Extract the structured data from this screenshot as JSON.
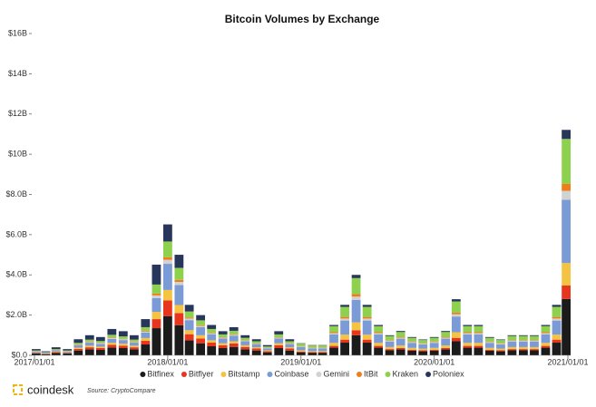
{
  "chart_data": {
    "type": "stacked-bar",
    "title": "Bitcoin Volumes by Exchange",
    "x": [
      "2017/01/01",
      "2017/02/01",
      "2017/03/01",
      "2017/04/01",
      "2017/05/01",
      "2017/06/01",
      "2017/07/01",
      "2017/08/01",
      "2017/09/01",
      "2017/10/01",
      "2017/11/01",
      "2017/12/01",
      "2018/01/01",
      "2018/02/01",
      "2018/03/01",
      "2018/04/01",
      "2018/05/01",
      "2018/06/01",
      "2018/07/01",
      "2018/08/01",
      "2018/09/01",
      "2018/10/01",
      "2018/11/01",
      "2018/12/01",
      "2019/01/01",
      "2019/02/01",
      "2019/03/01",
      "2019/04/01",
      "2019/05/01",
      "2019/06/01",
      "2019/07/01",
      "2019/08/01",
      "2019/09/01",
      "2019/10/01",
      "2019/11/01",
      "2019/12/01",
      "2020/01/01",
      "2020/02/01",
      "2020/03/01",
      "2020/04/01",
      "2020/05/01",
      "2020/06/01",
      "2020/07/01",
      "2020/08/01",
      "2020/09/01",
      "2020/10/01",
      "2020/11/01",
      "2020/12/01",
      "2021/01/01"
    ],
    "xlim": [
      "2017/01/01",
      "2021/01/01"
    ],
    "xticks": [
      "2017/01/01",
      "2018/01/01",
      "2019/01/01",
      "2020/01/01",
      "2021/01/01"
    ],
    "ylim": [
      0,
      16
    ],
    "yticks": [
      {
        "value": 0,
        "label": "$0.0"
      },
      {
        "value": 2,
        "label": "$2.0B"
      },
      {
        "value": 4,
        "label": "$4.0B"
      },
      {
        "value": 6,
        "label": "$6.0B"
      },
      {
        "value": 8,
        "label": "$8.0B"
      },
      {
        "value": 10,
        "label": "$10B"
      },
      {
        "value": 12,
        "label": "$12B"
      },
      {
        "value": 14,
        "label": "$14B"
      },
      {
        "value": 16,
        "label": "$16B"
      }
    ],
    "legend": "bottom",
    "series": [
      {
        "name": "Bitfinex",
        "color": "#1b1b1b",
        "values": [
          0.09,
          0.06,
          0.12,
          0.09,
          0.24,
          0.3,
          0.27,
          0.39,
          0.36,
          0.3,
          0.54,
          1.35,
          1.95,
          1.5,
          0.75,
          0.6,
          0.45,
          0.36,
          0.42,
          0.3,
          0.24,
          0.15,
          0.36,
          0.24,
          0.15,
          0.13,
          0.13,
          0.38,
          0.63,
          1.0,
          0.63,
          0.38,
          0.25,
          0.3,
          0.23,
          0.2,
          0.23,
          0.3,
          0.7,
          0.38,
          0.38,
          0.23,
          0.2,
          0.25,
          0.25,
          0.25,
          0.38,
          0.63,
          2.8
        ]
      },
      {
        "name": "Bitflyer",
        "color": "#e8361e",
        "values": [
          0.03,
          0.02,
          0.04,
          0.03,
          0.08,
          0.1,
          0.09,
          0.13,
          0.12,
          0.1,
          0.18,
          0.45,
          0.78,
          0.6,
          0.3,
          0.24,
          0.18,
          0.14,
          0.17,
          0.12,
          0.1,
          0.06,
          0.14,
          0.1,
          0.04,
          0.03,
          0.03,
          0.09,
          0.15,
          0.24,
          0.15,
          0.09,
          0.06,
          0.07,
          0.05,
          0.05,
          0.05,
          0.07,
          0.17,
          0.09,
          0.09,
          0.05,
          0.05,
          0.06,
          0.06,
          0.06,
          0.09,
          0.15,
          0.67
        ]
      },
      {
        "name": "Bitstamp",
        "color": "#f5c342",
        "values": [
          0.02,
          0.02,
          0.03,
          0.02,
          0.06,
          0.08,
          0.07,
          0.1,
          0.1,
          0.08,
          0.14,
          0.36,
          0.52,
          0.4,
          0.2,
          0.16,
          0.12,
          0.1,
          0.11,
          0.08,
          0.06,
          0.04,
          0.1,
          0.06,
          0.06,
          0.05,
          0.05,
          0.15,
          0.25,
          0.4,
          0.25,
          0.15,
          0.1,
          0.12,
          0.09,
          0.08,
          0.09,
          0.12,
          0.28,
          0.15,
          0.15,
          0.09,
          0.08,
          0.1,
          0.1,
          0.1,
          0.15,
          0.25,
          1.12
        ]
      },
      {
        "name": "Coinbase",
        "color": "#7b9bd6",
        "values": [
          0.05,
          0.03,
          0.06,
          0.05,
          0.12,
          0.15,
          0.14,
          0.2,
          0.18,
          0.15,
          0.27,
          0.68,
          1.3,
          1.0,
          0.5,
          0.4,
          0.3,
          0.24,
          0.28,
          0.2,
          0.16,
          0.1,
          0.24,
          0.16,
          0.17,
          0.14,
          0.14,
          0.42,
          0.7,
          1.12,
          0.7,
          0.42,
          0.28,
          0.34,
          0.25,
          0.22,
          0.25,
          0.34,
          0.78,
          0.42,
          0.42,
          0.25,
          0.22,
          0.28,
          0.28,
          0.28,
          0.42,
          0.7,
          3.14
        ]
      },
      {
        "name": "Gemini",
        "color": "#d2d2d2",
        "values": [
          0.01,
          0.01,
          0.01,
          0.01,
          0.02,
          0.03,
          0.03,
          0.04,
          0.04,
          0.03,
          0.05,
          0.14,
          0.2,
          0.15,
          0.08,
          0.06,
          0.05,
          0.04,
          0.04,
          0.03,
          0.02,
          0.02,
          0.04,
          0.02,
          0.02,
          0.02,
          0.02,
          0.06,
          0.1,
          0.16,
          0.1,
          0.06,
          0.04,
          0.05,
          0.04,
          0.03,
          0.04,
          0.05,
          0.11,
          0.06,
          0.06,
          0.04,
          0.03,
          0.04,
          0.04,
          0.04,
          0.06,
          0.1,
          0.45
        ]
      },
      {
        "name": "ItBit",
        "color": "#f07d1a",
        "values": [
          0.01,
          0,
          0.01,
          0.01,
          0.02,
          0.02,
          0.02,
          0.03,
          0.02,
          0.02,
          0.04,
          0.09,
          0.13,
          0.1,
          0.05,
          0.04,
          0.03,
          0.02,
          0.03,
          0.02,
          0.02,
          0.01,
          0.02,
          0.02,
          0.02,
          0.02,
          0.02,
          0.05,
          0.08,
          0.12,
          0.08,
          0.05,
          0.03,
          0.04,
          0.03,
          0.02,
          0.03,
          0.04,
          0.08,
          0.05,
          0.05,
          0.03,
          0.02,
          0.03,
          0.03,
          0.03,
          0.05,
          0.08,
          0.34
        ]
      },
      {
        "name": "Kraken",
        "color": "#8ed14f",
        "values": [
          0.03,
          0.02,
          0.04,
          0.03,
          0.08,
          0.1,
          0.09,
          0.13,
          0.12,
          0.1,
          0.18,
          0.45,
          0.78,
          0.6,
          0.3,
          0.24,
          0.18,
          0.14,
          0.17,
          0.12,
          0.1,
          0.06,
          0.14,
          0.1,
          0.12,
          0.1,
          0.1,
          0.3,
          0.5,
          0.8,
          0.5,
          0.3,
          0.2,
          0.24,
          0.18,
          0.16,
          0.18,
          0.24,
          0.56,
          0.3,
          0.3,
          0.18,
          0.16,
          0.2,
          0.2,
          0.2,
          0.3,
          0.5,
          2.24
        ]
      },
      {
        "name": "Poloniex",
        "color": "#27365a",
        "values": [
          0.07,
          0.04,
          0.09,
          0.07,
          0.18,
          0.22,
          0.2,
          0.29,
          0.26,
          0.22,
          0.4,
          0.99,
          0.85,
          0.65,
          0.33,
          0.26,
          0.2,
          0.16,
          0.18,
          0.13,
          0.1,
          0.07,
          0.16,
          0.1,
          0.02,
          0.02,
          0.02,
          0.06,
          0.1,
          0.16,
          0.1,
          0.06,
          0.04,
          0.05,
          0.04,
          0.03,
          0.04,
          0.05,
          0.11,
          0.06,
          0.06,
          0.04,
          0.03,
          0.04,
          0.04,
          0.04,
          0.06,
          0.1,
          0.45
        ]
      }
    ]
  },
  "footer": {
    "brand": "coindesk",
    "source": "Source: CryptoCompare"
  }
}
